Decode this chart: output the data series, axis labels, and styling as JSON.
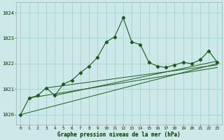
{
  "title": "Graphe pression niveau de la mer (hPa)",
  "bg_color": "#cce8e8",
  "grid_color": "#9ecece",
  "line_color": "#1a5c1a",
  "ylabel_color": "#003300",
  "x_ticks": [
    0,
    1,
    2,
    3,
    4,
    5,
    6,
    7,
    8,
    9,
    10,
    11,
    12,
    13,
    14,
    15,
    16,
    17,
    18,
    19,
    20,
    21,
    22,
    23
  ],
  "ylim": [
    1019.6,
    1024.4
  ],
  "yticks": [
    1020,
    1021,
    1022,
    1023,
    1024
  ],
  "main_series": [
    1020.0,
    1020.65,
    1020.75,
    1021.05,
    1020.75,
    1021.2,
    1021.35,
    1021.65,
    1021.9,
    1022.25,
    1022.85,
    1023.05,
    1023.8,
    1022.85,
    1022.75,
    1022.05,
    1021.9,
    1021.85,
    1021.95,
    1022.05,
    1022.0,
    1022.15,
    1022.5,
    1022.05
  ],
  "linear_series": [
    {
      "x0": 0,
      "y0": 1020.0,
      "x1": 23,
      "y1": 1022.0
    },
    {
      "x0": 1,
      "y0": 1020.65,
      "x1": 23,
      "y1": 1021.85
    },
    {
      "x0": 3,
      "y0": 1021.05,
      "x1": 23,
      "y1": 1021.95
    },
    {
      "x0": 4,
      "y0": 1020.75,
      "x1": 23,
      "y1": 1022.1
    }
  ]
}
